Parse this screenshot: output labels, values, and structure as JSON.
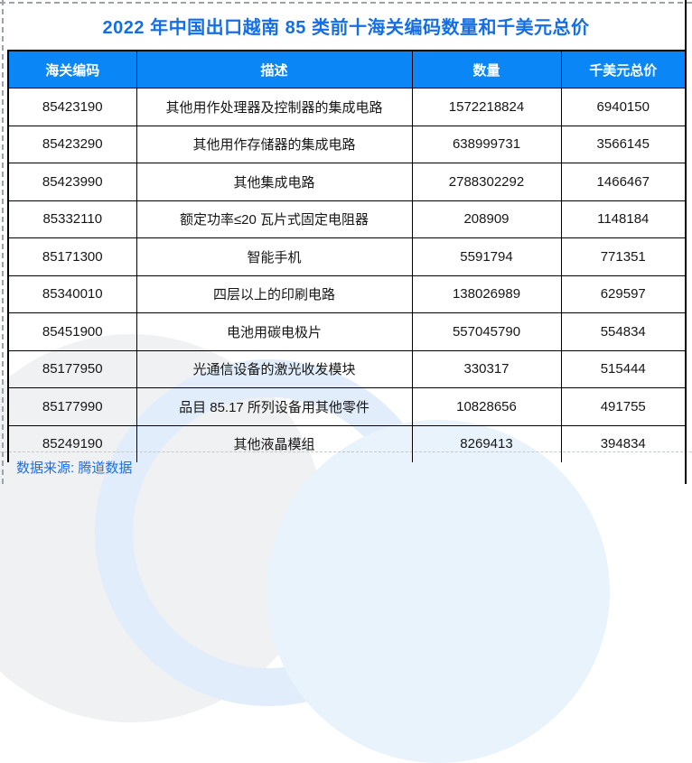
{
  "title": "2022 年中国出口越南 85 类前十海关编码数量和千美元总价",
  "source_note": "数据来源: 腾道数据",
  "colors": {
    "header_bg": "#0a86f6",
    "title": "#146fe6",
    "source": "#1b6ee3",
    "border": "#000000",
    "watermark_blue": "#e9f3fc",
    "watermark_gray": "#f0f1f3"
  },
  "chart_data": {
    "type": "table",
    "title": "2022 年中国出口越南 85 类前十海关编码数量和千美元总价",
    "columns": [
      "海关编码",
      "描述",
      "数量",
      "千美元总价"
    ],
    "rows": [
      {
        "code": "85423190",
        "desc": "其他用作处理器及控制器的集成电路",
        "qty": "1572218824",
        "value": "6940150"
      },
      {
        "code": "85423290",
        "desc": "其他用作存储器的集成电路",
        "qty": "638999731",
        "value": "3566145"
      },
      {
        "code": "85423990",
        "desc": "其他集成电路",
        "qty": "2788302292",
        "value": "1466467"
      },
      {
        "code": "85332110",
        "desc": "额定功率≤20 瓦片式固定电阻器",
        "qty": "208909",
        "value": "1148184"
      },
      {
        "code": "85171300",
        "desc": "智能手机",
        "qty": "5591794",
        "value": "771351"
      },
      {
        "code": "85340010",
        "desc": "四层以上的印刷电路",
        "qty": "138026989",
        "value": "629597"
      },
      {
        "code": "85451900",
        "desc": "电池用碳电极片",
        "qty": "557045790",
        "value": "554834"
      },
      {
        "code": "85177950",
        "desc": "光通信设备的激光收发模块",
        "qty": "330317",
        "value": "515444"
      },
      {
        "code": "85177990",
        "desc": "品目 85.17 所列设备用其他零件",
        "qty": "10828656",
        "value": "491755"
      },
      {
        "code": "85249190",
        "desc": "其他液晶模组",
        "qty": "8269413",
        "value": "394834"
      }
    ]
  }
}
